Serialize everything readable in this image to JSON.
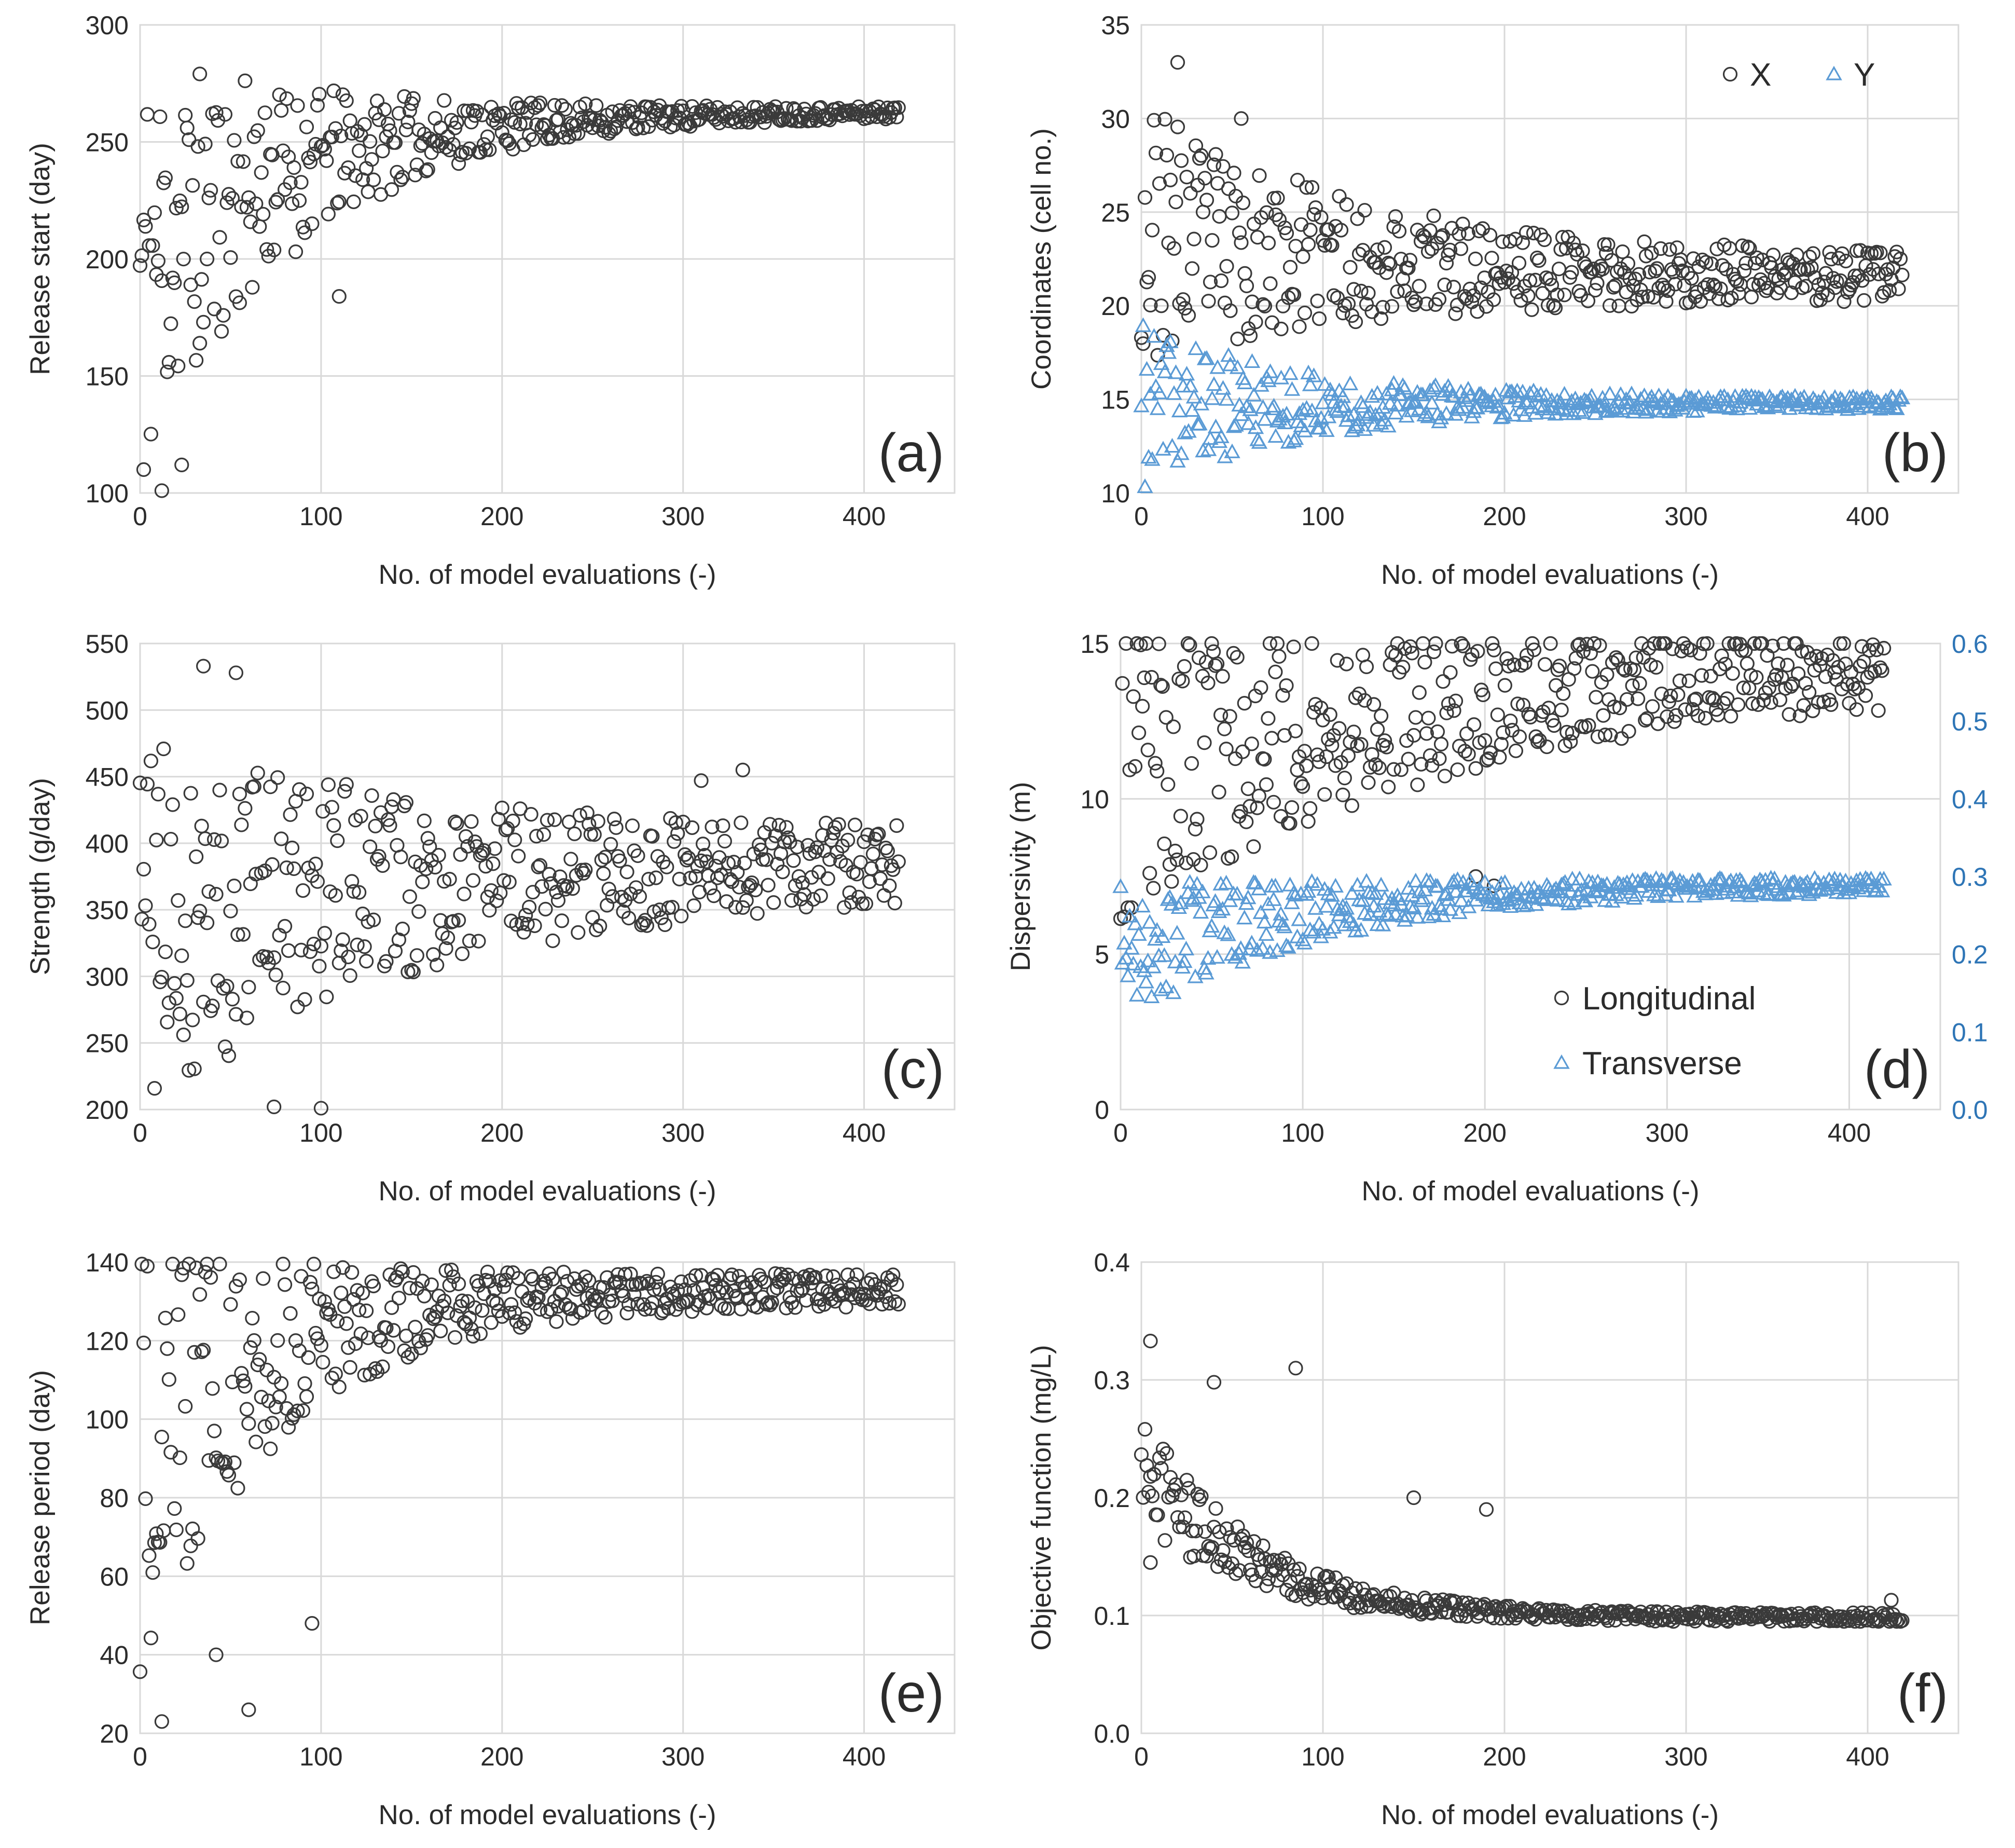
{
  "chart_data": [
    {
      "panel": "(a)",
      "type": "scatter",
      "xlabel": "No. of model evaluations (-)",
      "ylabel": "Release start (day)",
      "xlim": [
        0,
        450
      ],
      "xticks": [
        0,
        100,
        200,
        300,
        400
      ],
      "ylim": [
        100,
        300
      ],
      "yticks": [
        100,
        150,
        200,
        250,
        300
      ],
      "series": [
        {
          "name": "Release start",
          "marker": "circle",
          "color": "#3a3a3a",
          "gen": {
            "seed": 11,
            "n": 420,
            "start": 195,
            "spreadStart": 95,
            "end": 263,
            "spreadEnd": 2,
            "tau": 85,
            "min": 100,
            "max": 300,
            "outliers": [
              [
                110,
                184
              ],
              [
                2,
                110
              ],
              [
                12,
                101
              ],
              [
                23,
                112
              ],
              [
                33,
                164
              ]
            ]
          }
        }
      ]
    },
    {
      "panel": "(b)",
      "type": "scatter",
      "xlabel": "No. of model evaluations (-)",
      "ylabel": "Coordinates (cell no.)",
      "xlim": [
        0,
        450
      ],
      "xticks": [
        0,
        100,
        200,
        300,
        400
      ],
      "ylim": [
        10,
        35
      ],
      "yticks": [
        10,
        15,
        20,
        25,
        30,
        35
      ],
      "legend": {
        "position": "top-right",
        "entries": [
          "X",
          "Y"
        ]
      },
      "series": [
        {
          "name": "X",
          "marker": "circle",
          "color": "#3a3a3a",
          "gen": {
            "seed": 23,
            "n": 420,
            "start": 24,
            "spreadStart": 7,
            "end": 21.5,
            "spreadEnd": 1.2,
            "tau": 120,
            "min": 15.5,
            "max": 33,
            "outliers": [
              [
                20,
                33
              ],
              [
                55,
                30
              ]
            ]
          }
        },
        {
          "name": "Y",
          "marker": "triangle",
          "color": "#5b9bd5",
          "gen": {
            "seed": 37,
            "n": 420,
            "start": 14.5,
            "spreadStart": 4.5,
            "end": 14.8,
            "spreadEnd": 0.3,
            "tau": 90,
            "min": 10.3,
            "max": 20,
            "outliers": []
          }
        }
      ]
    },
    {
      "panel": "(c)",
      "type": "scatter",
      "xlabel": "No. of model evaluations (-)",
      "ylabel": "Strength (g/day)",
      "xlim": [
        0,
        450
      ],
      "xticks": [
        0,
        100,
        200,
        300,
        400
      ],
      "ylim": [
        200,
        550
      ],
      "yticks": [
        200,
        250,
        300,
        350,
        400,
        450,
        500,
        550
      ],
      "series": [
        {
          "name": "Strength",
          "marker": "circle",
          "color": "#3a3a3a",
          "gen": {
            "seed": 41,
            "n": 420,
            "start": 340,
            "spreadStart": 150,
            "end": 385,
            "spreadEnd": 25,
            "tau": 140,
            "min": 200,
            "max": 535,
            "outliers": [
              [
                35,
                533
              ],
              [
                53,
                528
              ],
              [
                333,
                455
              ],
              [
                310,
                447
              ],
              [
                74,
                202
              ],
              [
                100,
                201
              ]
            ]
          }
        }
      ]
    },
    {
      "panel": "(d)",
      "type": "scatter",
      "xlabel": "No. of model evaluations (-)",
      "ylabel": "Dispersivity (m)",
      "xlim": [
        0,
        450
      ],
      "xticks": [
        0,
        100,
        200,
        300,
        400
      ],
      "ylim": [
        0,
        15
      ],
      "yticks": [
        0,
        5,
        10,
        15
      ],
      "y2lim": [
        0.0,
        0.6
      ],
      "y2ticks": [
        "0.0",
        "0.1",
        "0.2",
        "0.3",
        "0.4",
        "0.5",
        "0.6"
      ],
      "legend": {
        "position": "bottom-center",
        "entries": [
          "Longitudinal",
          "Transverse"
        ]
      },
      "series": [
        {
          "name": "Longitudinal",
          "marker": "circle",
          "color": "#3a3a3a",
          "axis": "left",
          "gen": {
            "seed": 53,
            "n": 420,
            "start": 10.5,
            "spreadStart": 5,
            "end": 14.4,
            "spreadEnd": 0.9,
            "tau": 170,
            "min": 5,
            "max": 15,
            "outliers": [
              [
                195,
                7.5
              ],
              [
                205,
                7.2
              ]
            ]
          }
        },
        {
          "name": "Transverse",
          "marker": "triangle",
          "color": "#5b9bd5",
          "axis": "right",
          "gen": {
            "seed": 67,
            "n": 420,
            "start": 0.2,
            "spreadStart": 0.09,
            "end": 0.29,
            "spreadEnd": 0.008,
            "tau": 110,
            "min": 0.06,
            "max": 0.3,
            "outliers": []
          }
        }
      ]
    },
    {
      "panel": "(e)",
      "type": "scatter",
      "xlabel": "No. of model evaluations (-)",
      "ylabel": "Release period (day)",
      "xlim": [
        0,
        450
      ],
      "xticks": [
        0,
        100,
        200,
        300,
        400
      ],
      "ylim": [
        20,
        140
      ],
      "yticks": [
        20,
        40,
        60,
        80,
        100,
        120,
        140
      ],
      "series": [
        {
          "name": "Release period",
          "marker": "circle",
          "color": "#3a3a3a",
          "gen": {
            "seed": 79,
            "n": 420,
            "start": 90,
            "spreadStart": 58,
            "end": 133,
            "spreadEnd": 4,
            "tau": 75,
            "min": 22,
            "max": 139.5,
            "outliers": [
              [
                12,
                23
              ],
              [
                60,
                26
              ],
              [
                95,
                48
              ],
              [
                42,
                40
              ]
            ]
          }
        }
      ]
    },
    {
      "panel": "(f)",
      "type": "scatter",
      "xlabel": "No. of model evaluations (-)",
      "ylabel": "Objective function (mg/L)",
      "xlim": [
        0,
        450
      ],
      "xticks": [
        0,
        100,
        200,
        300,
        400
      ],
      "ylim": [
        0.0,
        0.4
      ],
      "yticks": [
        "0.0",
        "0.1",
        "0.2",
        "0.3",
        "0.4"
      ],
      "series": [
        {
          "name": "Objective function",
          "marker": "circle",
          "color": "#3a3a3a",
          "gen": {
            "seed": 97,
            "n": 420,
            "start": 0.215,
            "spreadStart": 0.05,
            "end": 0.097,
            "spreadEnd": 0.004,
            "tau": 60,
            "min": 0.095,
            "max": 0.34,
            "floorBias": true,
            "outliers": [
              [
                5,
                0.333
              ],
              [
                85,
                0.31
              ],
              [
                40,
                0.298
              ],
              [
                5,
                0.145
              ],
              [
                190,
                0.19
              ],
              [
                150,
                0.2
              ],
              [
                413,
                0.113
              ]
            ]
          }
        }
      ]
    }
  ]
}
